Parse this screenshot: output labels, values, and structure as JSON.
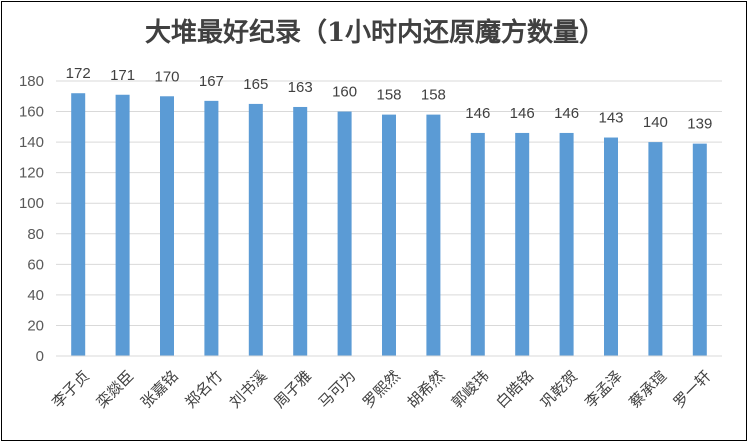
{
  "chart_data": {
    "type": "bar",
    "title": "大堆最好纪录（1小时内还原魔方数量）",
    "xlabel": "",
    "ylabel": "",
    "ylim": [
      0,
      180
    ],
    "ytick_step": 20,
    "grid": true,
    "legend": "none",
    "bar_color": "#5b9bd5",
    "grid_color": "#d9d9d9",
    "categories": [
      "李子贞",
      "栾燚臣",
      "张嘉铭",
      "郑名竹",
      "刘书溪",
      "周子雅",
      "马可为",
      "罗熙然",
      "胡希然",
      "郭峻玮",
      "白皓铭",
      "巩乾贺",
      "李孟泽",
      "蔡承瑄",
      "罗一轩"
    ],
    "values": [
      172,
      171,
      170,
      167,
      165,
      163,
      160,
      158,
      158,
      146,
      146,
      146,
      143,
      140,
      139
    ]
  }
}
